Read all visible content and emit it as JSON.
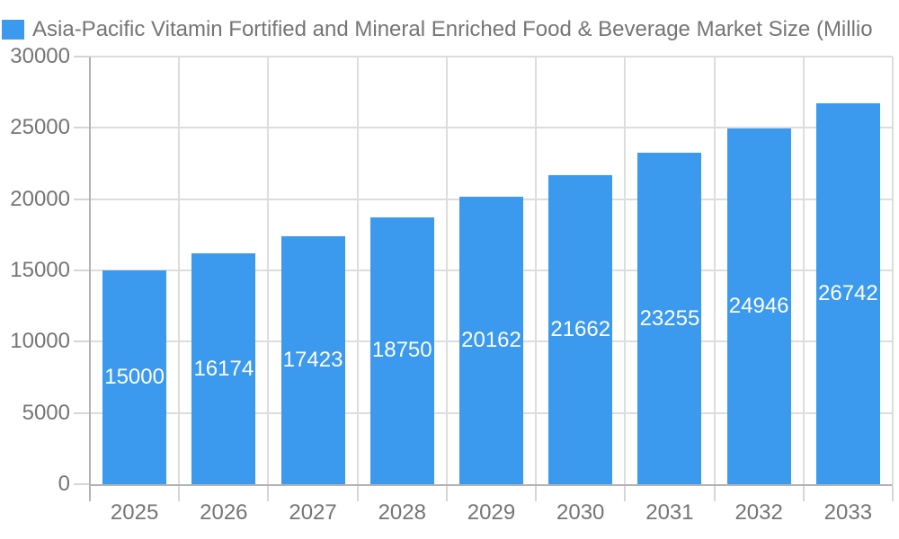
{
  "chart_data": {
    "type": "bar",
    "title": "Asia-Pacific Vitamin Fortified and Mineral Enriched Food & Beverage Market Size (Millio",
    "categories": [
      "2025",
      "2026",
      "2027",
      "2028",
      "2029",
      "2030",
      "2031",
      "2032",
      "2033"
    ],
    "values": [
      15000,
      16174,
      17423,
      18750,
      20162,
      21662,
      23255,
      24946,
      26742
    ],
    "series": [
      {
        "name": "Asia-Pacific Vitamin Fortified and Mineral Enriched Food & Beverage Market Size (Millio",
        "values": [
          15000,
          16174,
          17423,
          18750,
          20162,
          21662,
          23255,
          24946,
          26742
        ]
      }
    ],
    "xlabel": "",
    "ylabel": "",
    "ylim": [
      0,
      30000
    ],
    "y_ticks": [
      0,
      5000,
      10000,
      15000,
      20000,
      25000,
      30000
    ],
    "grid": true,
    "legend_position": "top-left",
    "value_label_style": "inside-center-white",
    "colors": {
      "bar": "#3B99EE",
      "axis_text": "#757575",
      "title_text": "#757575",
      "value_label": "#FFFFFF",
      "gridline": "#DDDDDD",
      "tick": "#D6D6D6",
      "axis_line": "#B3B3B3",
      "background": "#FFFFFF"
    }
  }
}
